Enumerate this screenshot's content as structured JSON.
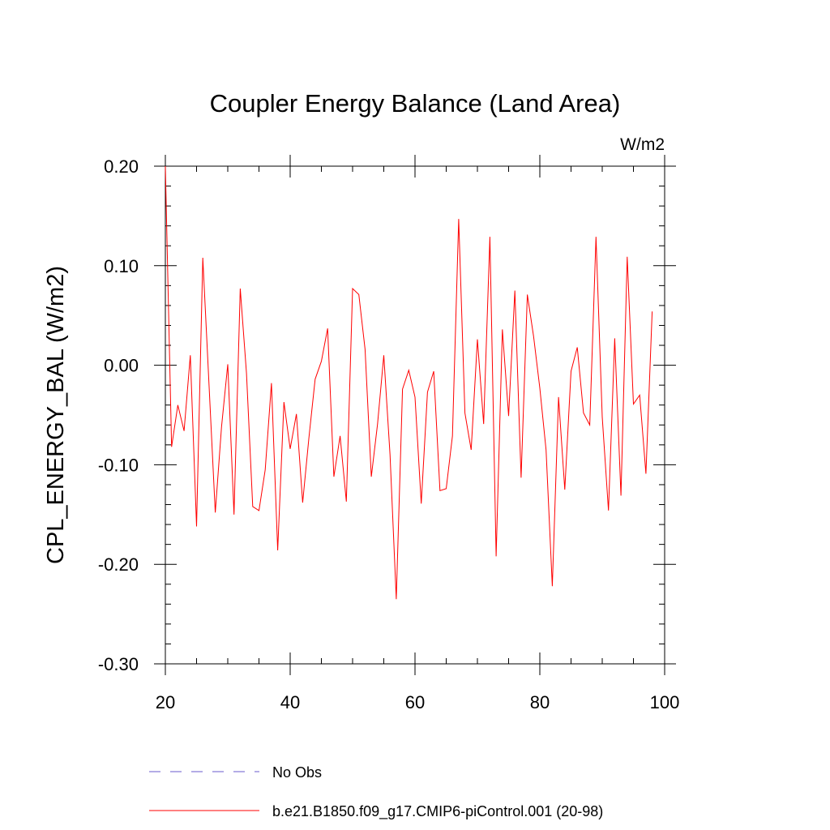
{
  "chart_data": {
    "type": "line",
    "title": "Coupler Energy Balance (Land Area)",
    "units_label": "W/m2",
    "ylabel": "CPL_ENERGY_BAL  (W/m2)",
    "xlabel": "",
    "xlim": [
      20,
      100
    ],
    "ylim": [
      -0.3,
      0.2
    ],
    "x_ticks": [
      20,
      40,
      60,
      80,
      100
    ],
    "x_tick_labels": [
      "20",
      "40",
      "60",
      "80",
      "100"
    ],
    "y_ticks": [
      0.2,
      0.1,
      0.0,
      -0.1,
      -0.2,
      -0.3
    ],
    "y_tick_labels": [
      "0.20",
      "0.10",
      "0.00",
      "-0.10",
      "-0.20",
      "-0.30"
    ],
    "x_minor_step": 5,
    "y_minor_step": 0.02,
    "grid": false,
    "legend_position": "bottom",
    "series": [
      {
        "name": "No Obs",
        "color": "#6a5acd",
        "style": "dashed",
        "x": [],
        "values": []
      },
      {
        "name": "b.e21.B1850.f09_g17.CMIP6-piControl.001 (20-98)",
        "color": "#ff0000",
        "style": "solid",
        "x": [
          20,
          21,
          22,
          23,
          24,
          25,
          26,
          27,
          28,
          29,
          30,
          31,
          32,
          33,
          34,
          35,
          36,
          37,
          38,
          39,
          40,
          41,
          42,
          43,
          44,
          45,
          46,
          47,
          48,
          49,
          50,
          51,
          52,
          53,
          54,
          55,
          56,
          57,
          58,
          59,
          60,
          61,
          62,
          63,
          64,
          65,
          66,
          67,
          68,
          69,
          70,
          71,
          72,
          73,
          74,
          75,
          76,
          77,
          78,
          79,
          80,
          81,
          82,
          83,
          84,
          85,
          86,
          87,
          88,
          89,
          90,
          91,
          92,
          93,
          94,
          95,
          96,
          97,
          98
        ],
        "values": [
          0.2,
          -0.082,
          -0.04,
          -0.066,
          0.01,
          -0.162,
          0.108,
          -0.02,
          -0.148,
          -0.062,
          0.001,
          -0.15,
          0.077,
          -0.008,
          -0.142,
          -0.146,
          -0.105,
          -0.018,
          -0.186,
          -0.037,
          -0.084,
          -0.049,
          -0.138,
          -0.073,
          -0.014,
          0.004,
          0.037,
          -0.112,
          -0.071,
          -0.137,
          0.077,
          0.071,
          0.016,
          -0.112,
          -0.059,
          0.01,
          -0.09,
          -0.235,
          -0.024,
          -0.005,
          -0.032,
          -0.139,
          -0.027,
          -0.006,
          -0.126,
          -0.124,
          -0.071,
          0.147,
          -0.048,
          -0.085,
          0.026,
          -0.059,
          0.129,
          -0.192,
          0.036,
          -0.051,
          0.075,
          -0.113,
          0.071,
          0.029,
          -0.023,
          -0.085,
          -0.222,
          -0.032,
          -0.125,
          -0.006,
          0.018,
          -0.048,
          -0.06,
          0.129,
          -0.052,
          -0.146,
          0.027,
          -0.131,
          0.109,
          -0.039,
          -0.03,
          -0.109,
          0.054
        ]
      }
    ]
  }
}
